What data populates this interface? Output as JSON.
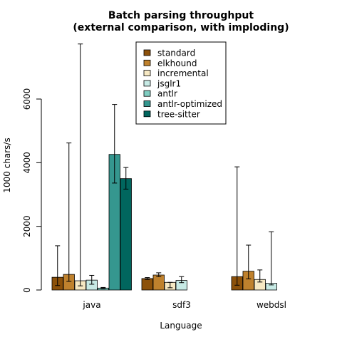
{
  "chart_data": {
    "type": "bar",
    "title": [
      "Batch parsing throughput",
      "(external comparison, with imploding)"
    ],
    "xlabel": "Language",
    "ylabel": "1000 chars/s",
    "ylim": [
      0,
      8000
    ],
    "yticks": [
      0,
      2000,
      4000,
      6000
    ],
    "categories": [
      "java",
      "sdf3",
      "webdsl"
    ],
    "legend_position": "top-center",
    "series": [
      {
        "name": "standard",
        "color": "#8c510a",
        "values": [
          400,
          360,
          420
        ],
        "err_low": [
          140,
          330,
          150
        ],
        "err_high": [
          1390,
          390,
          3870
        ]
      },
      {
        "name": "elkhound",
        "color": "#bf812d",
        "values": [
          490,
          470,
          590
        ],
        "err_low": [
          270,
          420,
          350
        ],
        "err_high": [
          4620,
          540,
          1410
        ]
      },
      {
        "name": "incremental",
        "color": "#f6e8c3",
        "values": [
          290,
          240,
          330
        ],
        "err_low": [
          130,
          70,
          250
        ],
        "err_high": [
          7730,
          240,
          630
        ]
      },
      {
        "name": "jsglr1",
        "color": "#c7eae5",
        "values": [
          310,
          300,
          210
        ],
        "err_low": [
          180,
          230,
          160
        ],
        "err_high": [
          460,
          420,
          1830
        ]
      },
      {
        "name": "antlr",
        "color": "#80cdc1",
        "values": [
          60,
          null,
          null
        ],
        "err_low": [
          40,
          null,
          null
        ],
        "err_high": [
          80,
          null,
          null
        ]
      },
      {
        "name": "antlr-optimized",
        "color": "#35978f",
        "values": [
          4260,
          null,
          null
        ],
        "err_low": [
          3360,
          null,
          null
        ],
        "err_high": [
          5830,
          null,
          null
        ]
      },
      {
        "name": "tree-sitter",
        "color": "#01665e",
        "values": [
          3500,
          null,
          null
        ],
        "err_low": [
          3170,
          null,
          null
        ],
        "err_high": [
          3850,
          null,
          null
        ]
      }
    ]
  }
}
